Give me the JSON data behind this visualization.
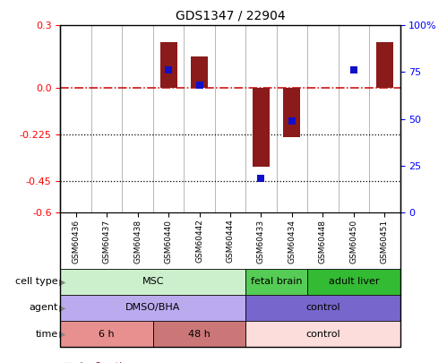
{
  "title": "GDS1347 / 22904",
  "samples": [
    "GSM60436",
    "GSM60437",
    "GSM60438",
    "GSM60440",
    "GSM60442",
    "GSM60444",
    "GSM60433",
    "GSM60434",
    "GSM60448",
    "GSM60450",
    "GSM60451"
  ],
  "log2_ratio": [
    0.0,
    0.0,
    0.0,
    0.22,
    0.15,
    0.0,
    -0.38,
    -0.24,
    0.0,
    0.0,
    0.22
  ],
  "pct_rank": [
    null,
    null,
    null,
    76,
    68,
    null,
    18,
    49,
    null,
    76,
    null
  ],
  "ylim": [
    -0.6,
    0.3
  ],
  "yticks_left": [
    0.3,
    0.0,
    -0.225,
    -0.45,
    -0.6
  ],
  "yticks_right": [
    100,
    75,
    50,
    25,
    0
  ],
  "hline_y": 0.0,
  "dotted_lines": [
    -0.225,
    -0.45
  ],
  "bar_color": "#8B1A1A",
  "dot_color": "#1010CC",
  "hline_color": "#CC0000",
  "cell_type_groups": [
    {
      "label": "MSC",
      "start": 0,
      "end": 6,
      "color": "#ccf0cc"
    },
    {
      "label": "fetal brain",
      "start": 6,
      "end": 8,
      "color": "#55cc55"
    },
    {
      "label": "adult liver",
      "start": 8,
      "end": 11,
      "color": "#33bb33"
    }
  ],
  "agent_groups": [
    {
      "label": "DMSO/BHA",
      "start": 0,
      "end": 6,
      "color": "#bbaaee"
    },
    {
      "label": "control",
      "start": 6,
      "end": 11,
      "color": "#7766cc"
    }
  ],
  "time_groups": [
    {
      "label": "6 h",
      "start": 0,
      "end": 3,
      "color": "#e89090"
    },
    {
      "label": "48 h",
      "start": 3,
      "end": 6,
      "color": "#cc7777"
    },
    {
      "label": "control",
      "start": 6,
      "end": 11,
      "color": "#fddcdc"
    }
  ]
}
